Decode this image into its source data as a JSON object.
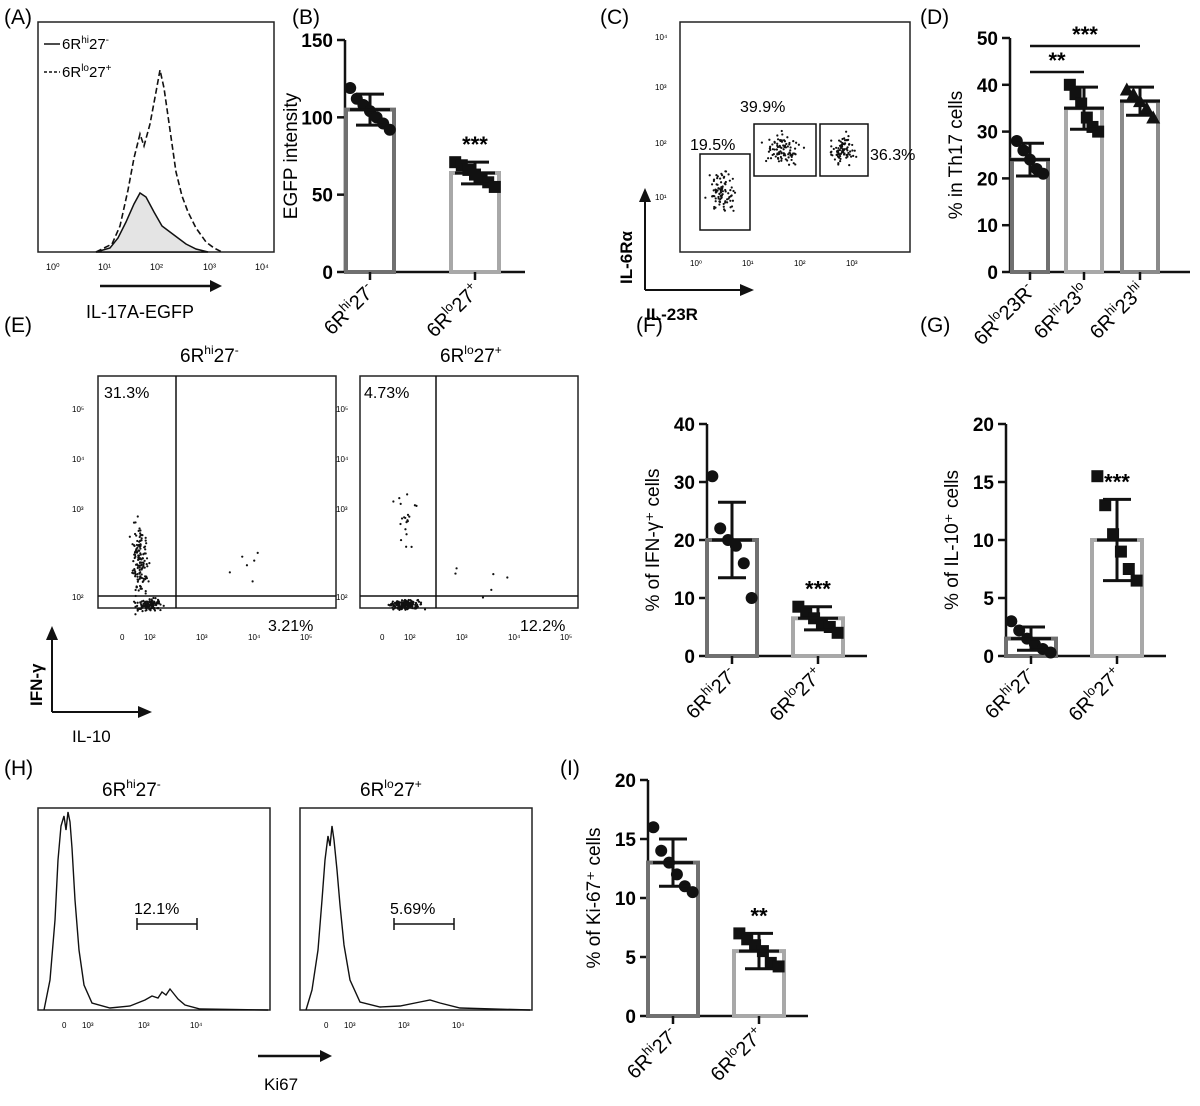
{
  "panels": {
    "A": {
      "letter": "(A)",
      "xlabel": "IL-17A-EGFP",
      "legend": [
        {
          "base": "6R",
          "sup1": "hi",
          "mid": "27",
          "sup2": "-",
          "style": "solid"
        },
        {
          "base": "6R",
          "sup1": "lo",
          "mid": "27",
          "sup2": "+",
          "style": "dashed"
        }
      ],
      "ticks": [
        "10⁰",
        "10¹",
        "10²",
        "10³",
        "10⁴"
      ]
    },
    "B": {
      "letter": "(B)"
    },
    "C": {
      "letter": "(C)",
      "xlabel": "IL-23R",
      "ylabel": "IL-6Rα",
      "gates": [
        "19.5%",
        "39.9%",
        "36.3%"
      ],
      "ticks": [
        "10⁰",
        "10¹",
        "10²",
        "10³"
      ],
      "yticks": [
        "10¹",
        "10²",
        "10³",
        "10⁴"
      ]
    },
    "D": {
      "letter": "(D)"
    },
    "E": {
      "letter": "(E)",
      "xlabel": "IL-10",
      "ylabel": "IFN-γ",
      "titles": [
        {
          "base": "6R",
          "sup1": "hi",
          "mid": "27",
          "sup2": "-"
        },
        {
          "base": "6R",
          "sup1": "lo",
          "mid": "27",
          "sup2": "+"
        }
      ],
      "quadrants": [
        {
          "ul": "31.3%",
          "lr": "3.21%"
        },
        {
          "ul": "4.73%",
          "lr": "12.2%"
        }
      ],
      "ticks": [
        "0",
        "10²",
        "10³",
        "10⁴",
        "10⁵"
      ],
      "yticks": [
        "10²",
        "10³",
        "10⁴",
        "10⁵"
      ]
    },
    "F": {
      "letter": "(F)"
    },
    "G": {
      "letter": "(G)"
    },
    "H": {
      "letter": "(H)",
      "xlabel": "Ki67",
      "titles": [
        {
          "base": "6R",
          "sup1": "hi",
          "mid": "27",
          "sup2": "-"
        },
        {
          "base": "6R",
          "sup1": "lo",
          "mid": "27",
          "sup2": "+"
        }
      ],
      "gates": [
        "12.1%",
        "5.69%"
      ],
      "ticks": [
        "0",
        "10³",
        "10³",
        "10⁴"
      ]
    },
    "I": {
      "letter": "(I)"
    }
  },
  "chart_data": [
    {
      "panel": "B",
      "type": "bar",
      "ylabel": "EGFP intensity",
      "ylim": [
        0,
        150
      ],
      "yticks": [
        0,
        50,
        100,
        150
      ],
      "categories": [
        {
          "base": "6R",
          "sup1": "hi",
          "mid": "27",
          "sup2": "-"
        },
        {
          "base": "6R",
          "sup1": "lo",
          "mid": "27",
          "sup2": "+"
        }
      ],
      "means": [
        105,
        64
      ],
      "sd": [
        10,
        7
      ],
      "points": [
        [
          119,
          112,
          108,
          104,
          100,
          96,
          92
        ],
        [
          71,
          69,
          66,
          63,
          61,
          58,
          55
        ]
      ],
      "markers": [
        "circle",
        "square"
      ],
      "sig": [
        "",
        "***"
      ],
      "bar_colors": [
        "#707070",
        "#a8a8a8"
      ]
    },
    {
      "panel": "D",
      "type": "bar",
      "ylabel": "% in Th17 cells",
      "ylim": [
        0,
        50
      ],
      "yticks": [
        0,
        10,
        20,
        30,
        40,
        50
      ],
      "categories": [
        {
          "base": "6R",
          "sup1": "lo",
          "mid": "23R",
          "sup2": "-"
        },
        {
          "base": "6R",
          "sup1": "hi",
          "mid": "23",
          "sup2": "lo"
        },
        {
          "base": "6R",
          "sup1": "hi",
          "mid": "23",
          "sup2": "hi"
        }
      ],
      "means": [
        24,
        35,
        36.5
      ],
      "sd": [
        3.5,
        4.5,
        3
      ],
      "points": [
        [
          28,
          26,
          24,
          22,
          21
        ],
        [
          40,
          38,
          36,
          33,
          31,
          30
        ],
        [
          39,
          38,
          36.5,
          35,
          33
        ]
      ],
      "markers": [
        "circle",
        "square",
        "triangle"
      ],
      "brackets": [
        {
          "from": 0,
          "to": 1,
          "label": "**"
        },
        {
          "from": 0,
          "to": 2,
          "label": "***"
        }
      ],
      "bar_colors": [
        "#707070",
        "#a8a8a8",
        "#8a8a8a"
      ]
    },
    {
      "panel": "F",
      "type": "bar",
      "ylabel": "% of IFN-γ⁺ cells",
      "ylim": [
        0,
        40
      ],
      "yticks": [
        0,
        10,
        20,
        30,
        40
      ],
      "categories": [
        {
          "base": "6R",
          "sup1": "hi",
          "mid": "27",
          "sup2": "-"
        },
        {
          "base": "6R",
          "sup1": "lo",
          "mid": "27",
          "sup2": "+"
        }
      ],
      "means": [
        20,
        6.5
      ],
      "sd": [
        6.5,
        2
      ],
      "points": [
        [
          31,
          22,
          20,
          19,
          16,
          10
        ],
        [
          8.5,
          7.5,
          6.5,
          5.5,
          5,
          4
        ]
      ],
      "markers": [
        "circle",
        "square"
      ],
      "sig": [
        "",
        "***"
      ],
      "bar_colors": [
        "#707070",
        "#a8a8a8"
      ]
    },
    {
      "panel": "G",
      "type": "bar",
      "ylabel": "% of IL-10⁺ cells",
      "ylim": [
        0,
        20
      ],
      "yticks": [
        0,
        5,
        10,
        15,
        20
      ],
      "categories": [
        {
          "base": "6R",
          "sup1": "hi",
          "mid": "27",
          "sup2": "-"
        },
        {
          "base": "6R",
          "sup1": "lo",
          "mid": "27",
          "sup2": "+"
        }
      ],
      "means": [
        1.5,
        10
      ],
      "sd": [
        1,
        3.5
      ],
      "points": [
        [
          3,
          2.2,
          1.5,
          1,
          0.6,
          0.3
        ],
        [
          15.5,
          13,
          10.5,
          9,
          7.5,
          6.5
        ]
      ],
      "markers": [
        "circle",
        "square"
      ],
      "sig": [
        "",
        "***"
      ],
      "bar_colors": [
        "#707070",
        "#a8a8a8"
      ]
    },
    {
      "panel": "I",
      "type": "bar",
      "ylabel": "% of Ki-67⁺ cells",
      "ylim": [
        0,
        20
      ],
      "yticks": [
        0,
        5,
        10,
        15,
        20
      ],
      "categories": [
        {
          "base": "6R",
          "sup1": "hi",
          "mid": "27",
          "sup2": "-"
        },
        {
          "base": "6R",
          "sup1": "lo",
          "mid": "27",
          "sup2": "+"
        }
      ],
      "means": [
        13,
        5.5
      ],
      "sd": [
        2,
        1.5
      ],
      "points": [
        [
          16,
          14,
          13,
          12,
          11,
          10.5
        ],
        [
          7,
          6.5,
          6,
          5.5,
          4.5,
          4.2
        ]
      ],
      "markers": [
        "circle",
        "square"
      ],
      "sig": [
        "",
        "**"
      ],
      "bar_colors": [
        "#707070",
        "#a8a8a8"
      ]
    }
  ]
}
